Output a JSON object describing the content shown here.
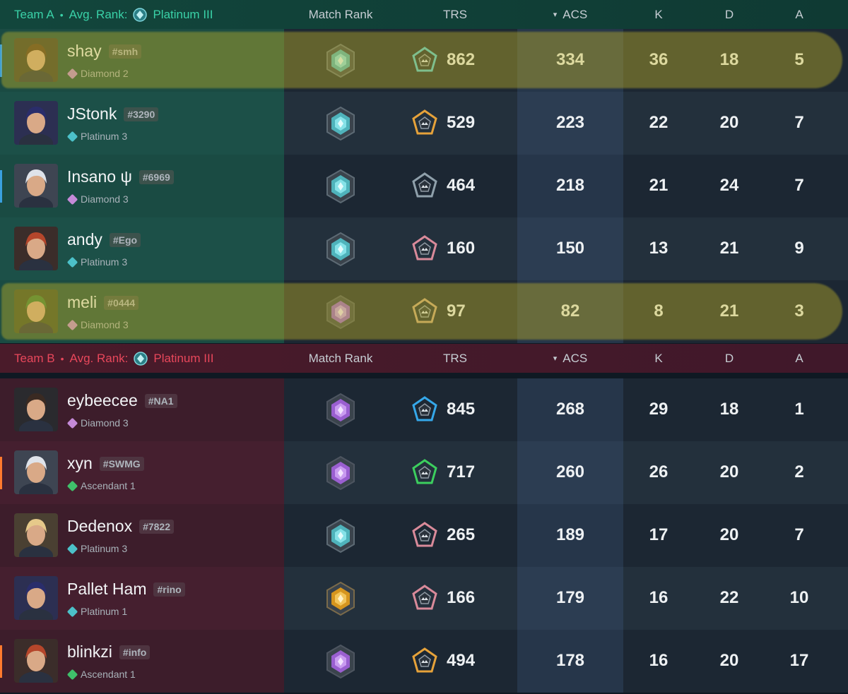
{
  "team_a": {
    "name": "Team A",
    "dot": "•",
    "avg_rank_label": "Avg. Rank:",
    "avg_rank": "Platinum III",
    "color": "#3ad2a8"
  },
  "team_b": {
    "name": "Team B",
    "dot": "•",
    "avg_rank_label": "Avg. Rank:",
    "avg_rank": "Platinum III",
    "color": "#e8475b"
  },
  "columns": {
    "match_rank": "Match Rank",
    "trs": "TRS",
    "acs": "ACS",
    "k": "K",
    "d": "D",
    "a": "A",
    "sort_indicator": "▾"
  },
  "players_a": [
    {
      "name": "shay",
      "tag": "#smh",
      "rank": "Diamond 2",
      "rank_color": "#c58ad8",
      "match_rank_icon": "platinum-badge-icon",
      "trs_icon": "trs-tier-icon",
      "trs": "862",
      "acs": "334",
      "k": "36",
      "d": "18",
      "a": "5",
      "highlighted": true,
      "marker": "blue"
    },
    {
      "name": "JStonk",
      "tag": "#3290",
      "rank": "Platinum 3",
      "rank_color": "#4cc1c9",
      "match_rank_icon": "platinum-badge-icon",
      "trs_icon": "trs-tier-icon",
      "trs": "529",
      "acs": "223",
      "k": "22",
      "d": "20",
      "a": "7",
      "highlighted": false,
      "marker": ""
    },
    {
      "name": "Insano ψ",
      "tag": "#6969",
      "rank": "Diamond 3",
      "rank_color": "#c58ad8",
      "match_rank_icon": "platinum-badge-icon",
      "trs_icon": "trs-tier-icon",
      "trs": "464",
      "acs": "218",
      "k": "21",
      "d": "24",
      "a": "7",
      "highlighted": false,
      "marker": "blue"
    },
    {
      "name": "andy",
      "tag": "#Ego",
      "rank": "Platinum 3",
      "rank_color": "#4cc1c9",
      "match_rank_icon": "platinum-badge-icon",
      "trs_icon": "trs-tier-icon",
      "trs": "160",
      "acs": "150",
      "k": "13",
      "d": "21",
      "a": "9",
      "highlighted": false,
      "marker": ""
    },
    {
      "name": "meli",
      "tag": "#0444",
      "rank": "Diamond 3",
      "rank_color": "#c58ad8",
      "match_rank_icon": "diamond-badge-icon",
      "trs_icon": "trs-tier-icon",
      "trs": "97",
      "acs": "82",
      "k": "8",
      "d": "21",
      "a": "3",
      "highlighted": true,
      "marker": ""
    }
  ],
  "players_b": [
    {
      "name": "eybeecee",
      "tag": "#NA1",
      "rank": "Diamond 3",
      "rank_color": "#c58ad8",
      "match_rank_icon": "diamond-badge-icon",
      "trs_icon": "trs-tier-icon",
      "trs": "845",
      "acs": "268",
      "k": "29",
      "d": "18",
      "a": "1",
      "highlighted": false,
      "marker": ""
    },
    {
      "name": "xyn",
      "tag": "#SWMG",
      "rank": "Ascendant 1",
      "rank_color": "#3fbf6a",
      "match_rank_icon": "diamond-badge-icon",
      "trs_icon": "trs-tier-icon",
      "trs": "717",
      "acs": "260",
      "k": "26",
      "d": "20",
      "a": "2",
      "highlighted": false,
      "marker": "orange"
    },
    {
      "name": "Dedenox",
      "tag": "#7822",
      "rank": "Platinum 3",
      "rank_color": "#4cc1c9",
      "match_rank_icon": "platinum-badge-icon",
      "trs_icon": "trs-tier-icon",
      "trs": "265",
      "acs": "189",
      "k": "17",
      "d": "20",
      "a": "7",
      "highlighted": false,
      "marker": ""
    },
    {
      "name": "Pallet Ham",
      "tag": "#rino",
      "rank": "Platinum 1",
      "rank_color": "#4cc1c9",
      "match_rank_icon": "gold-badge-icon",
      "trs_icon": "trs-tier-icon",
      "trs": "166",
      "acs": "179",
      "k": "16",
      "d": "22",
      "a": "10",
      "highlighted": false,
      "marker": ""
    },
    {
      "name": "blinkzi",
      "tag": "#info",
      "rank": "Ascendant 1",
      "rank_color": "#3fbf6a",
      "match_rank_icon": "diamond-badge-icon",
      "trs_icon": "trs-tier-icon",
      "trs": "494",
      "acs": "178",
      "k": "16",
      "d": "20",
      "a": "17",
      "highlighted": false,
      "marker": "orange"
    }
  ]
}
